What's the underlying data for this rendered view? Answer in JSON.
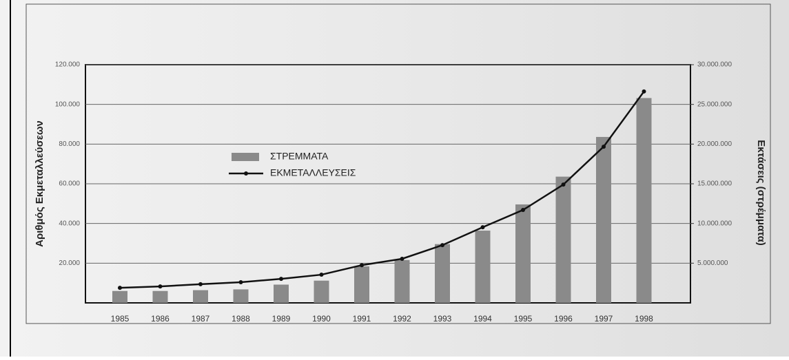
{
  "chart_data": {
    "type": "bar_line",
    "categories": [
      "1985",
      "1986",
      "1987",
      "1988",
      "1989",
      "1990",
      "1991",
      "1992",
      "1993",
      "1994",
      "1995",
      "1996",
      "1997",
      "1998"
    ],
    "series": [
      {
        "name": "ΣΤΡΕΜΜΑΤΑ",
        "color": "#8a8a8a",
        "axis": "y2",
        "kind": "bar",
        "values": [
          1500000,
          1500000,
          1600000,
          1700000,
          2300000,
          2800000,
          4600000,
          5400000,
          7400000,
          9100000,
          12400000,
          15900000,
          20900000,
          25800000
        ]
      },
      {
        "name": "ΕΚΜΕΤΑΛΛΕΥΣΕΙΣ",
        "color": "#111111",
        "axis": "y",
        "kind": "line",
        "values": [
          7600,
          8300,
          9400,
          10400,
          12100,
          14200,
          19000,
          22200,
          29100,
          38100,
          46800,
          59600,
          78700,
          106500
        ]
      }
    ],
    "ylabel": "Αριθμός Εκμεταλλεύσεων",
    "y2label": "Εκτάσεις (στρέμματα)",
    "ylim": [
      0,
      120000
    ],
    "yticks": [
      {
        "value": 20000,
        "label": "20.000"
      },
      {
        "value": 40000,
        "label": "40.000"
      },
      {
        "value": 60000,
        "label": "60.000"
      },
      {
        "value": 80000,
        "label": "80.000"
      },
      {
        "value": 100000,
        "label": "100.000"
      },
      {
        "value": 120000,
        "label": "120.000"
      }
    ],
    "y2lim": [
      0,
      30000000
    ],
    "y2ticks": [
      {
        "value": 5000000,
        "label": "5.000.000"
      },
      {
        "value": 10000000,
        "label": "10.000.000"
      },
      {
        "value": 15000000,
        "label": "15.000.000"
      },
      {
        "value": 20000000,
        "label": "20.000.000"
      },
      {
        "value": 25000000,
        "label": "25.000.000"
      },
      {
        "value": 30000000,
        "label": "30.000.000"
      }
    ],
    "grid": true
  }
}
